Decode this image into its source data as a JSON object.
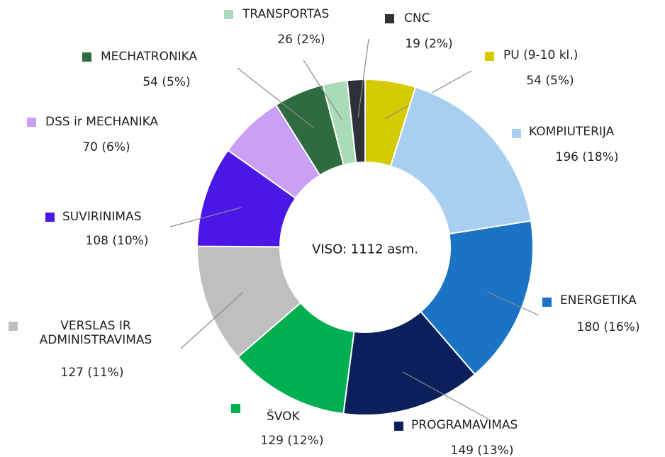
{
  "chart_data": {
    "type": "donut",
    "center_label": "VISO: 1112 asm.",
    "categories": [
      "PU (9-10 kl.)",
      "KOMPIUTERIJA",
      "ENERGETIKA",
      "PROGRAMAVIMAS",
      "ŠVOK",
      "VERSLAS IR ADMINISTRAVIMAS",
      "SUVIRINIMAS",
      "DSS ir MECHANIKA",
      "MECHATRONIKA",
      "TRANSPORTAS",
      "CNC"
    ],
    "values": [
      54,
      196,
      180,
      149,
      129,
      127,
      108,
      70,
      54,
      26,
      19
    ],
    "value_labels": [
      "54 (5%)",
      "196 (18%)",
      "180 (16%)",
      "149 (13%)",
      "129 (12%)",
      "127 (11%)",
      "108 (10%)",
      "70 (6%)",
      "54 (5%)",
      "26 (2%)",
      "19 (2%)"
    ],
    "colors": [
      "#d4cc00",
      "#a8cff0",
      "#1a73c4",
      "#0a1f5c",
      "#00b050",
      "#bfbfbf",
      "#4b16e8",
      "#c9a0f5",
      "#2e6b3e",
      "#a8dcb8",
      "#2d3238"
    ]
  }
}
